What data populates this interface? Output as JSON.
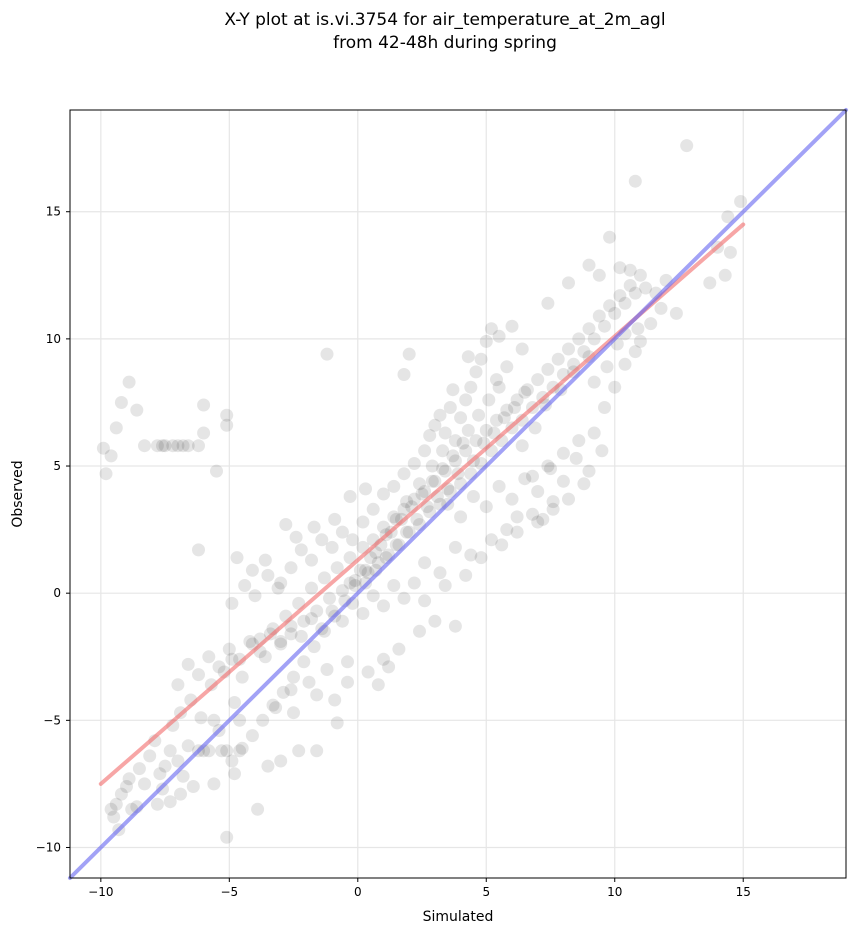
{
  "chart_data": {
    "type": "scatter",
    "title_lines": [
      "X-Y plot at is.vi.3754 for air_temperature_at_2m_agl",
      "from 42-48h during spring"
    ],
    "xlabel": "Simulated",
    "ylabel": "Observed",
    "xlim": [
      -11.2,
      19.0
    ],
    "ylim": [
      -11.2,
      19.0
    ],
    "xticks": [
      -10,
      -5,
      0,
      5,
      10,
      15
    ],
    "yticks": [
      -10,
      -5,
      0,
      5,
      10,
      15
    ],
    "tick_labels": {
      "x": [
        "−10",
        "−5",
        "0",
        "5",
        "10",
        "15"
      ],
      "y": [
        "−10",
        "−5",
        "0",
        "5",
        "10",
        "15"
      ]
    },
    "grid": true,
    "point_color": "#000000",
    "point_opacity": 0.1,
    "points": [
      [
        -9.9,
        5.7
      ],
      [
        -9.8,
        4.7
      ],
      [
        -9.6,
        5.4
      ],
      [
        -9.4,
        6.5
      ],
      [
        -9.2,
        7.5
      ],
      [
        -8.9,
        8.3
      ],
      [
        -8.6,
        7.2
      ],
      [
        -8.3,
        5.8
      ],
      [
        -7.8,
        5.8
      ],
      [
        -7.6,
        5.8
      ],
      [
        -7.5,
        5.8
      ],
      [
        -7.2,
        5.8
      ],
      [
        -7.0,
        5.8
      ],
      [
        -6.8,
        5.8
      ],
      [
        -6.6,
        5.8
      ],
      [
        -6.2,
        5.8
      ],
      [
        -6.0,
        6.3
      ],
      [
        -6.0,
        7.4
      ],
      [
        -5.5,
        4.8
      ],
      [
        -5.1,
        6.6
      ],
      [
        -5.1,
        7.0
      ],
      [
        -6.2,
        1.7
      ],
      [
        -1.2,
        9.4
      ],
      [
        1.8,
        8.6
      ],
      [
        2.0,
        9.4
      ],
      [
        12.8,
        17.6
      ],
      [
        10.8,
        16.2
      ],
      [
        9.8,
        14.0
      ],
      [
        14.9,
        15.4
      ],
      [
        14.4,
        14.8
      ],
      [
        14.5,
        13.4
      ],
      [
        14.0,
        13.6
      ],
      [
        13.7,
        12.2
      ],
      [
        14.3,
        12.5
      ],
      [
        3.8,
        -1.3
      ],
      [
        -5.1,
        -9.6
      ],
      [
        -3.9,
        -8.5
      ],
      [
        -3.5,
        -6.8
      ],
      [
        -3.0,
        -6.6
      ],
      [
        -2.3,
        -6.2
      ],
      [
        -1.6,
        -6.2
      ],
      [
        -0.8,
        -5.1
      ],
      [
        -4.8,
        -7.1
      ],
      [
        -5.3,
        -6.2
      ],
      [
        -5.6,
        -7.5
      ],
      [
        -4.6,
        -6.2
      ],
      [
        -9.6,
        -8.5
      ],
      [
        -9.5,
        -8.8
      ],
      [
        -9.3,
        -9.3
      ],
      [
        -9.4,
        -8.3
      ],
      [
        -9.0,
        -7.6
      ],
      [
        -8.8,
        -8.5
      ],
      [
        -8.6,
        -8.4
      ],
      [
        -8.3,
        -7.5
      ],
      [
        -7.8,
        -8.3
      ],
      [
        -7.6,
        -7.7
      ],
      [
        -7.5,
        -6.8
      ],
      [
        -7.3,
        -6.2
      ],
      [
        -7.0,
        -6.6
      ],
      [
        -6.8,
        -7.2
      ],
      [
        -6.6,
        -6.0
      ],
      [
        -6.4,
        -7.6
      ],
      [
        -6.2,
        -6.2
      ],
      [
        -6.0,
        -6.2
      ],
      [
        -5.8,
        -6.2
      ],
      [
        -5.6,
        -5.0
      ],
      [
        -5.4,
        -5.4
      ],
      [
        -5.1,
        -6.2
      ],
      [
        -4.8,
        -4.3
      ],
      [
        -4.6,
        -5.0
      ],
      [
        -8.1,
        -6.4
      ],
      [
        -7.9,
        -5.8
      ],
      [
        -7.2,
        -5.2
      ],
      [
        -6.9,
        -4.7
      ],
      [
        -6.5,
        -4.2
      ],
      [
        -6.1,
        -4.9
      ],
      [
        -5.7,
        -3.6
      ],
      [
        -5.2,
        -3.1
      ],
      [
        -4.9,
        -2.6
      ],
      [
        -4.5,
        -3.3
      ],
      [
        -4.1,
        -2.0
      ],
      [
        -3.8,
        -1.8
      ],
      [
        -3.6,
        -2.5
      ],
      [
        -3.3,
        -1.4
      ],
      [
        -3.0,
        -1.9
      ],
      [
        -2.8,
        -0.9
      ],
      [
        -2.6,
        -1.6
      ],
      [
        -2.3,
        -0.4
      ],
      [
        -2.1,
        -1.1
      ],
      [
        -1.8,
        0.2
      ],
      [
        -1.6,
        -0.7
      ],
      [
        -1.3,
        0.6
      ],
      [
        -1.1,
        -0.2
      ],
      [
        -0.8,
        1.0
      ],
      [
        -0.6,
        0.1
      ],
      [
        -0.3,
        1.4
      ],
      [
        -0.1,
        0.5
      ],
      [
        0.2,
        1.8
      ],
      [
        0.4,
        0.8
      ],
      [
        0.6,
        2.1
      ],
      [
        0.8,
        1.2
      ],
      [
        1.0,
        2.6
      ],
      [
        1.2,
        1.5
      ],
      [
        1.4,
        3.0
      ],
      [
        1.6,
        1.9
      ],
      [
        1.8,
        3.3
      ],
      [
        2.0,
        2.4
      ],
      [
        2.2,
        3.7
      ],
      [
        2.4,
        2.7
      ],
      [
        2.6,
        4.0
      ],
      [
        2.8,
        3.2
      ],
      [
        3.0,
        4.4
      ],
      [
        3.2,
        3.5
      ],
      [
        3.4,
        4.8
      ],
      [
        3.6,
        4.0
      ],
      [
        3.8,
        5.2
      ],
      [
        4.0,
        4.3
      ],
      [
        4.2,
        5.6
      ],
      [
        4.4,
        4.7
      ],
      [
        4.6,
        6.0
      ],
      [
        4.8,
        5.1
      ],
      [
        5.0,
        6.4
      ],
      [
        5.2,
        5.6
      ],
      [
        5.4,
        6.8
      ],
      [
        5.6,
        6.0
      ],
      [
        5.8,
        7.2
      ],
      [
        6.0,
        6.5
      ],
      [
        6.2,
        7.6
      ],
      [
        6.4,
        6.8
      ],
      [
        6.6,
        8.0
      ],
      [
        6.8,
        7.3
      ],
      [
        7.0,
        8.4
      ],
      [
        7.2,
        7.7
      ],
      [
        7.4,
        8.8
      ],
      [
        7.6,
        8.1
      ],
      [
        7.8,
        9.2
      ],
      [
        8.0,
        8.6
      ],
      [
        8.2,
        9.6
      ],
      [
        8.4,
        9.0
      ],
      [
        8.6,
        10.0
      ],
      [
        8.8,
        9.5
      ],
      [
        9.0,
        10.4
      ],
      [
        9.2,
        10.0
      ],
      [
        9.4,
        10.9
      ],
      [
        9.6,
        10.5
      ],
      [
        9.8,
        11.3
      ],
      [
        10.0,
        11.0
      ],
      [
        10.2,
        11.7
      ],
      [
        10.4,
        11.4
      ],
      [
        10.6,
        12.1
      ],
      [
        10.8,
        11.8
      ],
      [
        11.0,
        12.5
      ],
      [
        11.2,
        12.0
      ],
      [
        9.0,
        12.9
      ],
      [
        9.4,
        12.5
      ],
      [
        10.2,
        12.8
      ],
      [
        8.2,
        12.2
      ],
      [
        7.4,
        11.4
      ],
      [
        2.8,
        6.2
      ],
      [
        3.0,
        6.6
      ],
      [
        3.2,
        7.0
      ],
      [
        3.4,
        6.3
      ],
      [
        3.6,
        7.3
      ],
      [
        3.8,
        6.0
      ],
      [
        4.0,
        6.9
      ],
      [
        4.2,
        7.6
      ],
      [
        4.4,
        8.1
      ],
      [
        4.6,
        8.7
      ],
      [
        4.8,
        9.2
      ],
      [
        5.0,
        9.9
      ],
      [
        5.2,
        10.4
      ],
      [
        3.7,
        8.0
      ],
      [
        4.3,
        9.3
      ],
      [
        5.5,
        10.1
      ],
      [
        6.0,
        10.5
      ],
      [
        6.4,
        9.6
      ],
      [
        5.8,
        8.9
      ],
      [
        5.4,
        8.4
      ],
      [
        3.5,
        3.5
      ],
      [
        4.0,
        3.0
      ],
      [
        4.5,
        3.8
      ],
      [
        5.0,
        3.4
      ],
      [
        5.5,
        4.2
      ],
      [
        6.0,
        3.7
      ],
      [
        6.5,
        4.5
      ],
      [
        7.0,
        4.0
      ],
      [
        7.5,
        4.9
      ],
      [
        8.0,
        4.4
      ],
      [
        8.5,
        5.3
      ],
      [
        9.0,
        4.8
      ],
      [
        9.5,
        5.6
      ],
      [
        6.2,
        3.0
      ],
      [
        6.8,
        3.1
      ],
      [
        7.2,
        2.9
      ],
      [
        7.6,
        3.6
      ],
      [
        5.8,
        2.5
      ],
      [
        5.2,
        2.1
      ],
      [
        4.4,
        1.5
      ],
      [
        3.8,
        1.8
      ],
      [
        3.2,
        0.8
      ],
      [
        2.6,
        1.2
      ],
      [
        2.2,
        0.4
      ],
      [
        1.8,
        -0.2
      ],
      [
        1.4,
        0.3
      ],
      [
        1.0,
        -0.5
      ],
      [
        0.6,
        -0.1
      ],
      [
        0.2,
        -0.8
      ],
      [
        -0.2,
        -0.4
      ],
      [
        -0.6,
        -1.1
      ],
      [
        -1.0,
        -0.7
      ],
      [
        -1.4,
        -1.4
      ],
      [
        -1.8,
        -1.0
      ],
      [
        -2.2,
        -1.7
      ],
      [
        -2.6,
        -1.3
      ],
      [
        -3.0,
        -2.0
      ],
      [
        -3.4,
        -1.6
      ],
      [
        -3.8,
        -2.3
      ],
      [
        -4.2,
        -1.9
      ],
      [
        -4.6,
        -2.6
      ],
      [
        -5.0,
        -2.2
      ],
      [
        -5.4,
        -2.9
      ],
      [
        -5.8,
        -2.5
      ],
      [
        -6.2,
        -3.2
      ],
      [
        -6.6,
        -2.8
      ],
      [
        -7.0,
        -3.6
      ],
      [
        -4.9,
        -0.4
      ],
      [
        -4.4,
        0.3
      ],
      [
        -4.0,
        -0.1
      ],
      [
        -3.5,
        0.7
      ],
      [
        -3.0,
        0.4
      ],
      [
        -2.6,
        1.0
      ],
      [
        -2.2,
        1.7
      ],
      [
        -1.8,
        1.3
      ],
      [
        -1.4,
        2.1
      ],
      [
        -1.0,
        1.8
      ],
      [
        -0.6,
        2.4
      ],
      [
        -0.2,
        2.1
      ],
      [
        0.2,
        2.8
      ],
      [
        0.6,
        3.3
      ],
      [
        1.0,
        3.9
      ],
      [
        1.4,
        4.2
      ],
      [
        1.8,
        4.7
      ],
      [
        2.2,
        5.1
      ],
      [
        2.6,
        5.6
      ],
      [
        -2.8,
        2.7
      ],
      [
        -2.4,
        2.2
      ],
      [
        -1.7,
        2.6
      ],
      [
        -0.9,
        2.9
      ],
      [
        -0.3,
        3.8
      ],
      [
        0.3,
        4.1
      ],
      [
        -4.7,
        1.4
      ],
      [
        -4.1,
        0.9
      ],
      [
        -3.6,
        1.3
      ],
      [
        -3.1,
        0.2
      ],
      [
        -0.4,
        -2.7
      ],
      [
        -1.2,
        -3.0
      ],
      [
        -1.9,
        -3.5
      ],
      [
        -2.6,
        -3.8
      ],
      [
        -3.2,
        -4.5
      ],
      [
        -2.5,
        -4.7
      ],
      [
        -1.6,
        -4.0
      ],
      [
        -0.9,
        -4.2
      ],
      [
        -0.4,
        -3.5
      ],
      [
        0.4,
        -3.1
      ],
      [
        1.0,
        -2.6
      ],
      [
        1.6,
        -2.2
      ],
      [
        2.4,
        -1.5
      ],
      [
        3.0,
        -1.1
      ],
      [
        0.8,
        -3.6
      ],
      [
        1.2,
        -2.9
      ],
      [
        2.6,
        -0.3
      ],
      [
        3.4,
        0.3
      ],
      [
        4.2,
        0.7
      ],
      [
        4.8,
        1.4
      ],
      [
        5.6,
        1.9
      ],
      [
        6.2,
        2.4
      ],
      [
        7.0,
        2.8
      ],
      [
        7.6,
        3.3
      ],
      [
        8.2,
        3.7
      ],
      [
        8.8,
        4.3
      ],
      [
        9.2,
        6.3
      ],
      [
        9.6,
        7.3
      ],
      [
        10.0,
        8.1
      ],
      [
        10.4,
        9.0
      ],
      [
        10.8,
        9.5
      ],
      [
        11.4,
        10.6
      ],
      [
        8.6,
        6.0
      ],
      [
        8.0,
        5.5
      ],
      [
        7.4,
        5.0
      ],
      [
        6.8,
        4.6
      ],
      [
        6.4,
        5.8
      ],
      [
        6.9,
        6.5
      ],
      [
        7.3,
        7.4
      ],
      [
        7.9,
        8.0
      ],
      [
        8.4,
        8.7
      ],
      [
        9.0,
        9.3
      ],
      [
        9.7,
        8.9
      ],
      [
        10.1,
        9.8
      ],
      [
        10.9,
        10.4
      ],
      [
        3.3,
        5.6
      ],
      [
        2.9,
        5.0
      ],
      [
        2.4,
        4.3
      ],
      [
        1.9,
        3.6
      ],
      [
        1.5,
        2.9
      ],
      [
        1.1,
        2.3
      ],
      [
        0.7,
        1.6
      ],
      [
        0.3,
        0.9
      ],
      [
        -0.1,
        0.3
      ],
      [
        -0.5,
        -0.3
      ],
      [
        -0.9,
        -0.9
      ],
      [
        -1.3,
        -1.5
      ],
      [
        -1.7,
        -2.1
      ],
      [
        -2.1,
        -2.7
      ],
      [
        -2.5,
        -3.3
      ],
      [
        -2.9,
        -3.9
      ],
      [
        -3.3,
        -4.4
      ],
      [
        -3.7,
        -5.0
      ],
      [
        -4.1,
        -5.6
      ],
      [
        -4.5,
        -6.1
      ],
      [
        -4.9,
        -6.6
      ],
      [
        -6.9,
        -7.9
      ],
      [
        -7.3,
        -8.2
      ],
      [
        -7.7,
        -7.1
      ],
      [
        -8.5,
        -6.9
      ],
      [
        -8.9,
        -7.3
      ],
      [
        -9.2,
        -7.9
      ],
      [
        4.5,
        5.2
      ],
      [
        4.9,
        5.9
      ],
      [
        5.3,
        6.3
      ],
      [
        5.7,
        6.9
      ],
      [
        6.1,
        7.3
      ],
      [
        6.5,
        7.9
      ],
      [
        3.9,
        4.7
      ],
      [
        3.5,
        4.1
      ],
      [
        3.1,
        3.8
      ],
      [
        2.7,
        3.4
      ],
      [
        2.3,
        2.9
      ],
      [
        1.9,
        2.4
      ],
      [
        1.5,
        1.9
      ],
      [
        1.1,
        1.4
      ],
      [
        0.7,
        0.9
      ],
      [
        0.3,
        0.4
      ],
      [
        4.3,
        6.4
      ],
      [
        4.7,
        7.0
      ],
      [
        5.1,
        7.6
      ],
      [
        5.5,
        8.1
      ],
      [
        4.1,
        5.9
      ],
      [
        3.7,
        5.4
      ],
      [
        3.3,
        4.9
      ],
      [
        2.9,
        4.4
      ],
      [
        2.5,
        3.9
      ],
      [
        2.1,
        3.4
      ],
      [
        1.7,
        2.9
      ],
      [
        1.3,
        2.4
      ],
      [
        0.9,
        1.9
      ],
      [
        0.5,
        1.4
      ],
      [
        0.1,
        0.9
      ],
      [
        -0.3,
        0.4
      ],
      [
        11.6,
        11.8
      ],
      [
        12.0,
        12.3
      ],
      [
        10.6,
        12.7
      ],
      [
        11.8,
        11.2
      ],
      [
        12.4,
        11.0
      ],
      [
        10.4,
        10.2
      ],
      [
        11.0,
        9.9
      ],
      [
        9.2,
        8.3
      ]
    ],
    "series": [
      {
        "kind": "regression",
        "color": "#f26b6b",
        "opacity": 0.6,
        "x": [
          -10,
          15
        ],
        "y": [
          -7.5,
          14.5
        ]
      },
      {
        "kind": "one-to-one",
        "color": "#6464f0",
        "opacity": 0.6,
        "x": [
          -11.2,
          19.0
        ],
        "y": [
          -11.2,
          19.0
        ]
      }
    ]
  }
}
